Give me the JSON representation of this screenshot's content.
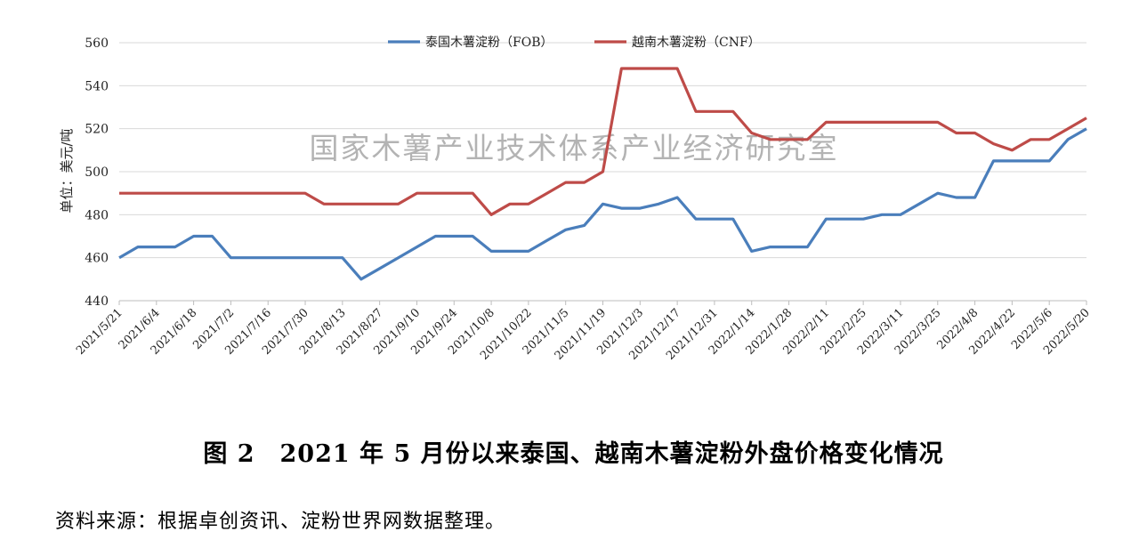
{
  "chart_data": {
    "type": "line",
    "ylabel": "单位：美元/吨",
    "ylim": [
      440,
      560
    ],
    "yticks": [
      440,
      460,
      480,
      500,
      520,
      540,
      560
    ],
    "grid": true,
    "legend_position": "top-center",
    "watermark": "国家木薯产业技术体系产业经济研究室",
    "x_tick_labels": [
      "2021/5/21",
      "2021/6/4",
      "2021/6/18",
      "2021/7/2",
      "2021/7/16",
      "2021/7/30",
      "2021/8/13",
      "2021/8/27",
      "2021/9/10",
      "2021/9/24",
      "2021/10/8",
      "2021/10/22",
      "2021/11/5",
      "2021/11/19",
      "2021/12/3",
      "2021/12/17",
      "2021/12/31",
      "2022/1/14",
      "2022/1/28",
      "2022/2/11",
      "2022/2/25",
      "2022/3/11",
      "2022/3/25",
      "2022/4/8",
      "2022/4/22",
      "2022/5/6",
      "2022/5/20"
    ],
    "x": [
      "2021/5/21",
      "2021/5/28",
      "2021/6/4",
      "2021/6/11",
      "2021/6/18",
      "2021/6/25",
      "2021/7/2",
      "2021/7/9",
      "2021/7/16",
      "2021/7/23",
      "2021/7/30",
      "2021/8/6",
      "2021/8/13",
      "2021/8/20",
      "2021/8/27",
      "2021/9/3",
      "2021/9/10",
      "2021/9/17",
      "2021/9/24",
      "2021/10/1",
      "2021/10/8",
      "2021/10/15",
      "2021/10/22",
      "2021/10/29",
      "2021/11/5",
      "2021/11/12",
      "2021/11/19",
      "2021/11/26",
      "2021/12/3",
      "2021/12/10",
      "2021/12/17",
      "2021/12/24",
      "2021/12/31",
      "2022/1/7",
      "2022/1/14",
      "2022/1/21",
      "2022/1/28",
      "2022/2/4",
      "2022/2/11",
      "2022/2/18",
      "2022/2/25",
      "2022/3/4",
      "2022/3/11",
      "2022/3/18",
      "2022/3/25",
      "2022/4/1",
      "2022/4/8",
      "2022/4/15",
      "2022/4/22",
      "2022/4/29",
      "2022/5/6",
      "2022/5/13",
      "2022/5/20"
    ],
    "series": [
      {
        "name": "泰国木薯淀粉（FOB）",
        "color": "#4a7ebb",
        "values": [
          460,
          465,
          465,
          465,
          470,
          470,
          460,
          460,
          460,
          460,
          460,
          460,
          460,
          450,
          455,
          460,
          465,
          470,
          470,
          470,
          463,
          463,
          463,
          468,
          473,
          475,
          485,
          483,
          483,
          485,
          488,
          478,
          478,
          478,
          463,
          465,
          465,
          465,
          478,
          478,
          478,
          480,
          480,
          485,
          490,
          488,
          488,
          505,
          505,
          505,
          505,
          515,
          520
        ]
      },
      {
        "name": "越南木薯淀粉（CNF）",
        "color": "#be4b48",
        "values": [
          490,
          490,
          490,
          490,
          490,
          490,
          490,
          490,
          490,
          490,
          490,
          485,
          485,
          485,
          485,
          485,
          490,
          490,
          490,
          490,
          480,
          485,
          485,
          490,
          495,
          495,
          500,
          548,
          548,
          548,
          548,
          528,
          528,
          528,
          518,
          515,
          515,
          515,
          523,
          523,
          523,
          523,
          523,
          523,
          523,
          518,
          518,
          513,
          510,
          515,
          515,
          520,
          525
        ]
      }
    ]
  },
  "caption": "图 2　2021 年 5 月份以来泰国、越南木薯淀粉外盘价格变化情况",
  "source": "资料来源：根据卓创资讯、淀粉世界网数据整理。"
}
